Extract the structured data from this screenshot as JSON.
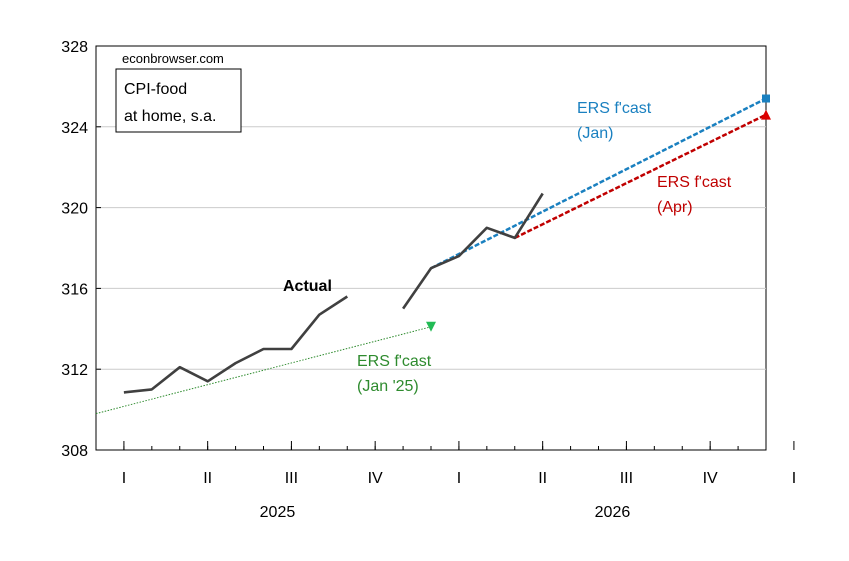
{
  "chart_data": {
    "type": "line",
    "source_note": "econbrowser.com",
    "title_lines": [
      "CPI-food",
      "at home, s.a."
    ],
    "xlabel": "",
    "ylabel": "",
    "ylim": [
      308,
      328
    ],
    "yticks": [
      308,
      312,
      316,
      320,
      324,
      328
    ],
    "xlim": [
      "2024-12",
      "2026-12"
    ],
    "x_quarter_ticks": [
      "I",
      "II",
      "III",
      "IV",
      "I",
      "II",
      "III",
      "IV",
      "I"
    ],
    "x_year_labels": [
      "2025",
      "2026"
    ],
    "grid": "horizontal",
    "series": [
      {
        "name": "Actual",
        "color": "#404040",
        "style": "solid",
        "segments": [
          [
            {
              "x": "2025-01",
              "y": 310.85
            },
            {
              "x": "2025-02",
              "y": 311.0
            },
            {
              "x": "2025-03",
              "y": 312.1
            },
            {
              "x": "2025-04",
              "y": 311.4
            },
            {
              "x": "2025-05",
              "y": 312.3
            },
            {
              "x": "2025-06",
              "y": 313.0
            },
            {
              "x": "2025-07",
              "y": 313.0
            },
            {
              "x": "2025-08",
              "y": 314.7
            },
            {
              "x": "2025-09",
              "y": 315.6
            }
          ],
          [
            {
              "x": "2025-11",
              "y": 315.0
            },
            {
              "x": "2025-12",
              "y": 317.0
            },
            {
              "x": "2026-01",
              "y": 317.6
            },
            {
              "x": "2026-02",
              "y": 319.0
            },
            {
              "x": "2026-03",
              "y": 318.5
            },
            {
              "x": "2026-04",
              "y": 320.7
            }
          ]
        ]
      },
      {
        "name": "ERS f'cast (Jan '25)",
        "label_lines": [
          "ERS f'cast",
          "(Jan '25)"
        ],
        "color": "#2e8b2e",
        "marker_color": "#22bb55",
        "marker": "triangle-down",
        "style": "dotted",
        "points": [
          {
            "x": "2024-12",
            "y": 309.8
          },
          {
            "x": "2025-12",
            "y": 314.1
          }
        ]
      },
      {
        "name": "ERS f'cast (Jan)",
        "label_lines": [
          "ERS f'cast",
          "(Jan)"
        ],
        "color": "#1a80c0",
        "marker_color": "#1a80c0",
        "marker": "square",
        "style": "dashed",
        "points": [
          {
            "x": "2025-12",
            "y": 317.0
          },
          {
            "x": "2026-12",
            "y": 325.4
          }
        ]
      },
      {
        "name": "ERS f'cast (Apr)",
        "label_lines": [
          "ERS f'cast",
          "(Apr)"
        ],
        "color": "#c00000",
        "marker_color": "#dd0000",
        "marker": "triangle-up",
        "style": "dashed",
        "points": [
          {
            "x": "2026-03",
            "y": 318.5
          },
          {
            "x": "2026-12",
            "y": 324.6
          }
        ]
      }
    ],
    "annotations": [
      {
        "text": "Actual",
        "bold": true
      }
    ]
  }
}
